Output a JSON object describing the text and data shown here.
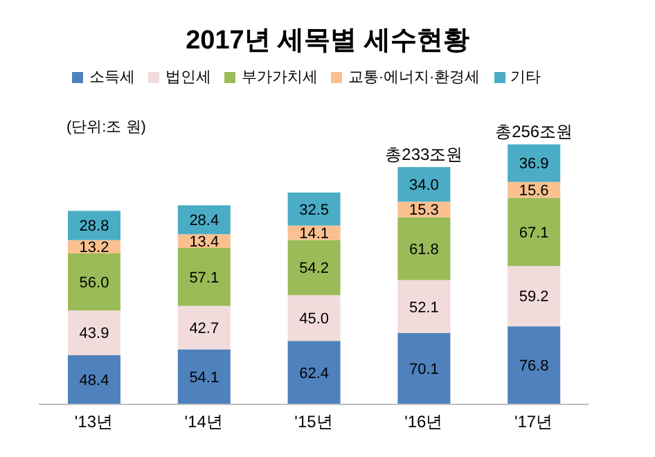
{
  "chart_data": {
    "type": "bar",
    "title": "2017년 세목별 세수현황",
    "stacked": true,
    "legend": "top",
    "grid": false,
    "categories": [
      "'13년",
      "'14년",
      "'15년",
      "'16년",
      "'17년"
    ],
    "series": [
      {
        "name": "소득세",
        "color": "#4f81bd",
        "values": [
          48.4,
          54.1,
          62.4,
          70.1,
          76.8
        ],
        "value_labels": [
          "48.4",
          "54.1",
          "62.4",
          "70.1",
          "76.8"
        ]
      },
      {
        "name": "법인세",
        "color": "#f2dcdb",
        "values": [
          43.9,
          42.7,
          45.0,
          52.1,
          59.2
        ],
        "value_labels": [
          "43.9",
          "42.7",
          "45.0",
          "52.1",
          "59.2"
        ]
      },
      {
        "name": "부가가치세",
        "color": "#9bbb59",
        "values": [
          56.0,
          57.1,
          54.2,
          61.8,
          67.1
        ],
        "value_labels": [
          "56.0",
          "57.1",
          "54.2",
          "61.8",
          "67.1"
        ]
      },
      {
        "name": "교통·에너지·환경세",
        "color": "#fac090",
        "values": [
          13.2,
          13.4,
          14.1,
          15.3,
          15.6
        ],
        "value_labels": [
          "13.2",
          "13.4",
          "14.1",
          "15.3",
          "15.6"
        ]
      },
      {
        "name": "기타",
        "color": "#4bacc6",
        "values": [
          28.8,
          28.4,
          32.5,
          34.0,
          36.9
        ],
        "value_labels": [
          "28.8",
          "28.4",
          "32.5",
          "34.0",
          "36.9"
        ]
      }
    ],
    "totals": [
      null,
      null,
      null,
      "총233조원",
      "총256조원"
    ],
    "annotations": [
      "(단위:조 원)"
    ]
  }
}
